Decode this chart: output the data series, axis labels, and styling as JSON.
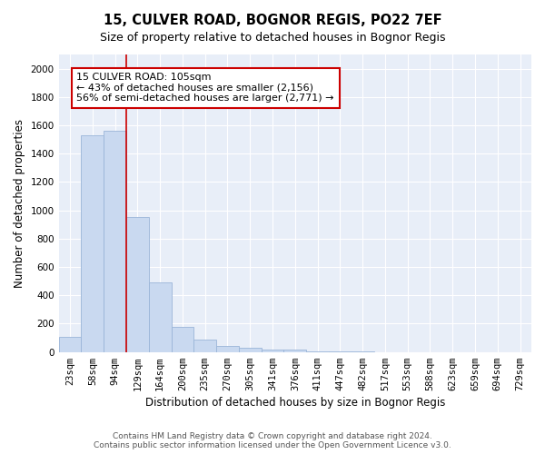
{
  "title1": "15, CULVER ROAD, BOGNOR REGIS, PO22 7EF",
  "title2": "Size of property relative to detached houses in Bognor Regis",
  "xlabel": "Distribution of detached houses by size in Bognor Regis",
  "ylabel": "Number of detached properties",
  "bar_labels": [
    "23sqm",
    "58sqm",
    "94sqm",
    "129sqm",
    "164sqm",
    "200sqm",
    "235sqm",
    "270sqm",
    "305sqm",
    "341sqm",
    "376sqm",
    "411sqm",
    "447sqm",
    "482sqm",
    "517sqm",
    "553sqm",
    "588sqm",
    "623sqm",
    "659sqm",
    "694sqm",
    "729sqm"
  ],
  "bar_values": [
    110,
    1530,
    1560,
    950,
    490,
    180,
    90,
    40,
    30,
    20,
    15,
    5,
    3,
    2,
    1,
    1,
    0,
    0,
    0,
    0,
    0
  ],
  "bar_color": "#c9d9f0",
  "bar_edgecolor": "#9ab5d8",
  "vline_x": 2.5,
  "vline_color": "#cc0000",
  "annotation_text": "15 CULVER ROAD: 105sqm\n← 43% of detached houses are smaller (2,156)\n56% of semi-detached houses are larger (2,771) →",
  "annotation_box_color": "#ffffff",
  "annotation_box_edgecolor": "#cc0000",
  "ylim": [
    0,
    2100
  ],
  "yticks": [
    0,
    200,
    400,
    600,
    800,
    1000,
    1200,
    1400,
    1600,
    1800,
    2000
  ],
  "fig_background": "#ffffff",
  "plot_background": "#e8eef8",
  "footer_text": "Contains HM Land Registry data © Crown copyright and database right 2024.\nContains public sector information licensed under the Open Government Licence v3.0.",
  "title_fontsize": 10.5,
  "subtitle_fontsize": 9,
  "axis_label_fontsize": 8.5,
  "tick_fontsize": 7.5,
  "annotation_fontsize": 8,
  "footer_fontsize": 6.5
}
